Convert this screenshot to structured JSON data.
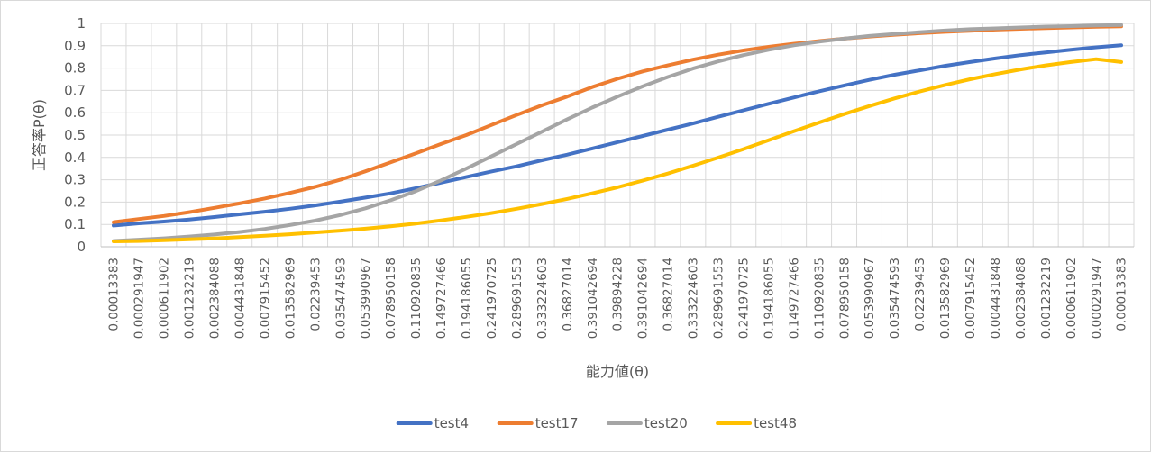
{
  "chart_data": {
    "type": "line",
    "title": "",
    "xlabel": "能力値(θ)",
    "ylabel": "正答率P(θ)",
    "ylim": [
      0,
      1
    ],
    "y_ticks": [
      "0",
      "0.1",
      "0.2",
      "0.3",
      "0.4",
      "0.5",
      "0.6",
      "0.7",
      "0.8",
      "0.9",
      "1"
    ],
    "grid": "vertical and horizontal",
    "legend_position": "bottom",
    "categories": [
      "0.00013383",
      "0.000291947",
      "0.000611902",
      "0.001232219",
      "0.002384088",
      "0.004431848",
      "0.007915452",
      "0.013582969",
      "0.02239453",
      "0.035474593",
      "0.053990967",
      "0.078950158",
      "0.110920835",
      "0.149727466",
      "0.194186055",
      "0.241970725",
      "0.289691553",
      "0.333224603",
      "0.36827014",
      "0.391042694",
      "0.39894228",
      "0.391042694",
      "0.36827014",
      "0.333224603",
      "0.289691553",
      "0.241970725",
      "0.194186055",
      "0.149727466",
      "0.110920835",
      "0.078950158",
      "0.053990967",
      "0.035474593",
      "0.02239453",
      "0.013582969",
      "0.007915452",
      "0.004431848",
      "0.002384088",
      "0.001232219",
      "0.000611902",
      "0.000291947",
      "0.00013383"
    ],
    "series": [
      {
        "name": "test4",
        "color": "#4472c4",
        "values": [
          0.095,
          0.105,
          0.113,
          0.122,
          0.133,
          0.145,
          0.157,
          0.17,
          0.185,
          0.202,
          0.22,
          0.239,
          0.262,
          0.287,
          0.312,
          0.337,
          0.36,
          0.387,
          0.412,
          0.44,
          0.468,
          0.496,
          0.524,
          0.552,
          0.582,
          0.611,
          0.64,
          0.668,
          0.696,
          0.722,
          0.747,
          0.77,
          0.79,
          0.81,
          0.827,
          0.843,
          0.858,
          0.87,
          0.882,
          0.893,
          0.902
        ]
      },
      {
        "name": "test17",
        "color": "#ed7d31",
        "values": [
          0.11,
          0.124,
          0.138,
          0.155,
          0.174,
          0.194,
          0.216,
          0.241,
          0.268,
          0.3,
          0.338,
          0.378,
          0.418,
          0.46,
          0.5,
          0.545,
          0.59,
          0.633,
          0.672,
          0.715,
          0.752,
          0.785,
          0.812,
          0.838,
          0.86,
          0.879,
          0.895,
          0.909,
          0.921,
          0.932,
          0.941,
          0.949,
          0.956,
          0.962,
          0.967,
          0.972,
          0.976,
          0.979,
          0.982,
          0.985,
          0.987
        ]
      },
      {
        "name": "test20",
        "color": "#a5a5a5",
        "values": [
          0.026,
          0.032,
          0.038,
          0.046,
          0.055,
          0.066,
          0.08,
          0.097,
          0.117,
          0.142,
          0.172,
          0.208,
          0.249,
          0.297,
          0.35,
          0.405,
          0.46,
          0.515,
          0.57,
          0.623,
          0.672,
          0.718,
          0.76,
          0.798,
          0.83,
          0.858,
          0.882,
          0.902,
          0.918,
          0.932,
          0.944,
          0.953,
          0.961,
          0.968,
          0.974,
          0.978,
          0.982,
          0.986,
          0.988,
          0.991,
          0.993
        ]
      },
      {
        "name": "test48",
        "color": "#ffc000",
        "values": [
          0.024,
          0.026,
          0.029,
          0.033,
          0.037,
          0.043,
          0.049,
          0.056,
          0.064,
          0.072,
          0.081,
          0.092,
          0.104,
          0.118,
          0.134,
          0.151,
          0.17,
          0.191,
          0.214,
          0.239,
          0.266,
          0.296,
          0.328,
          0.363,
          0.399,
          0.437,
          0.477,
          0.517,
          0.556,
          0.594,
          0.63,
          0.664,
          0.695,
          0.724,
          0.75,
          0.773,
          0.794,
          0.812,
          0.827,
          0.84,
          0.827
        ]
      }
    ]
  }
}
